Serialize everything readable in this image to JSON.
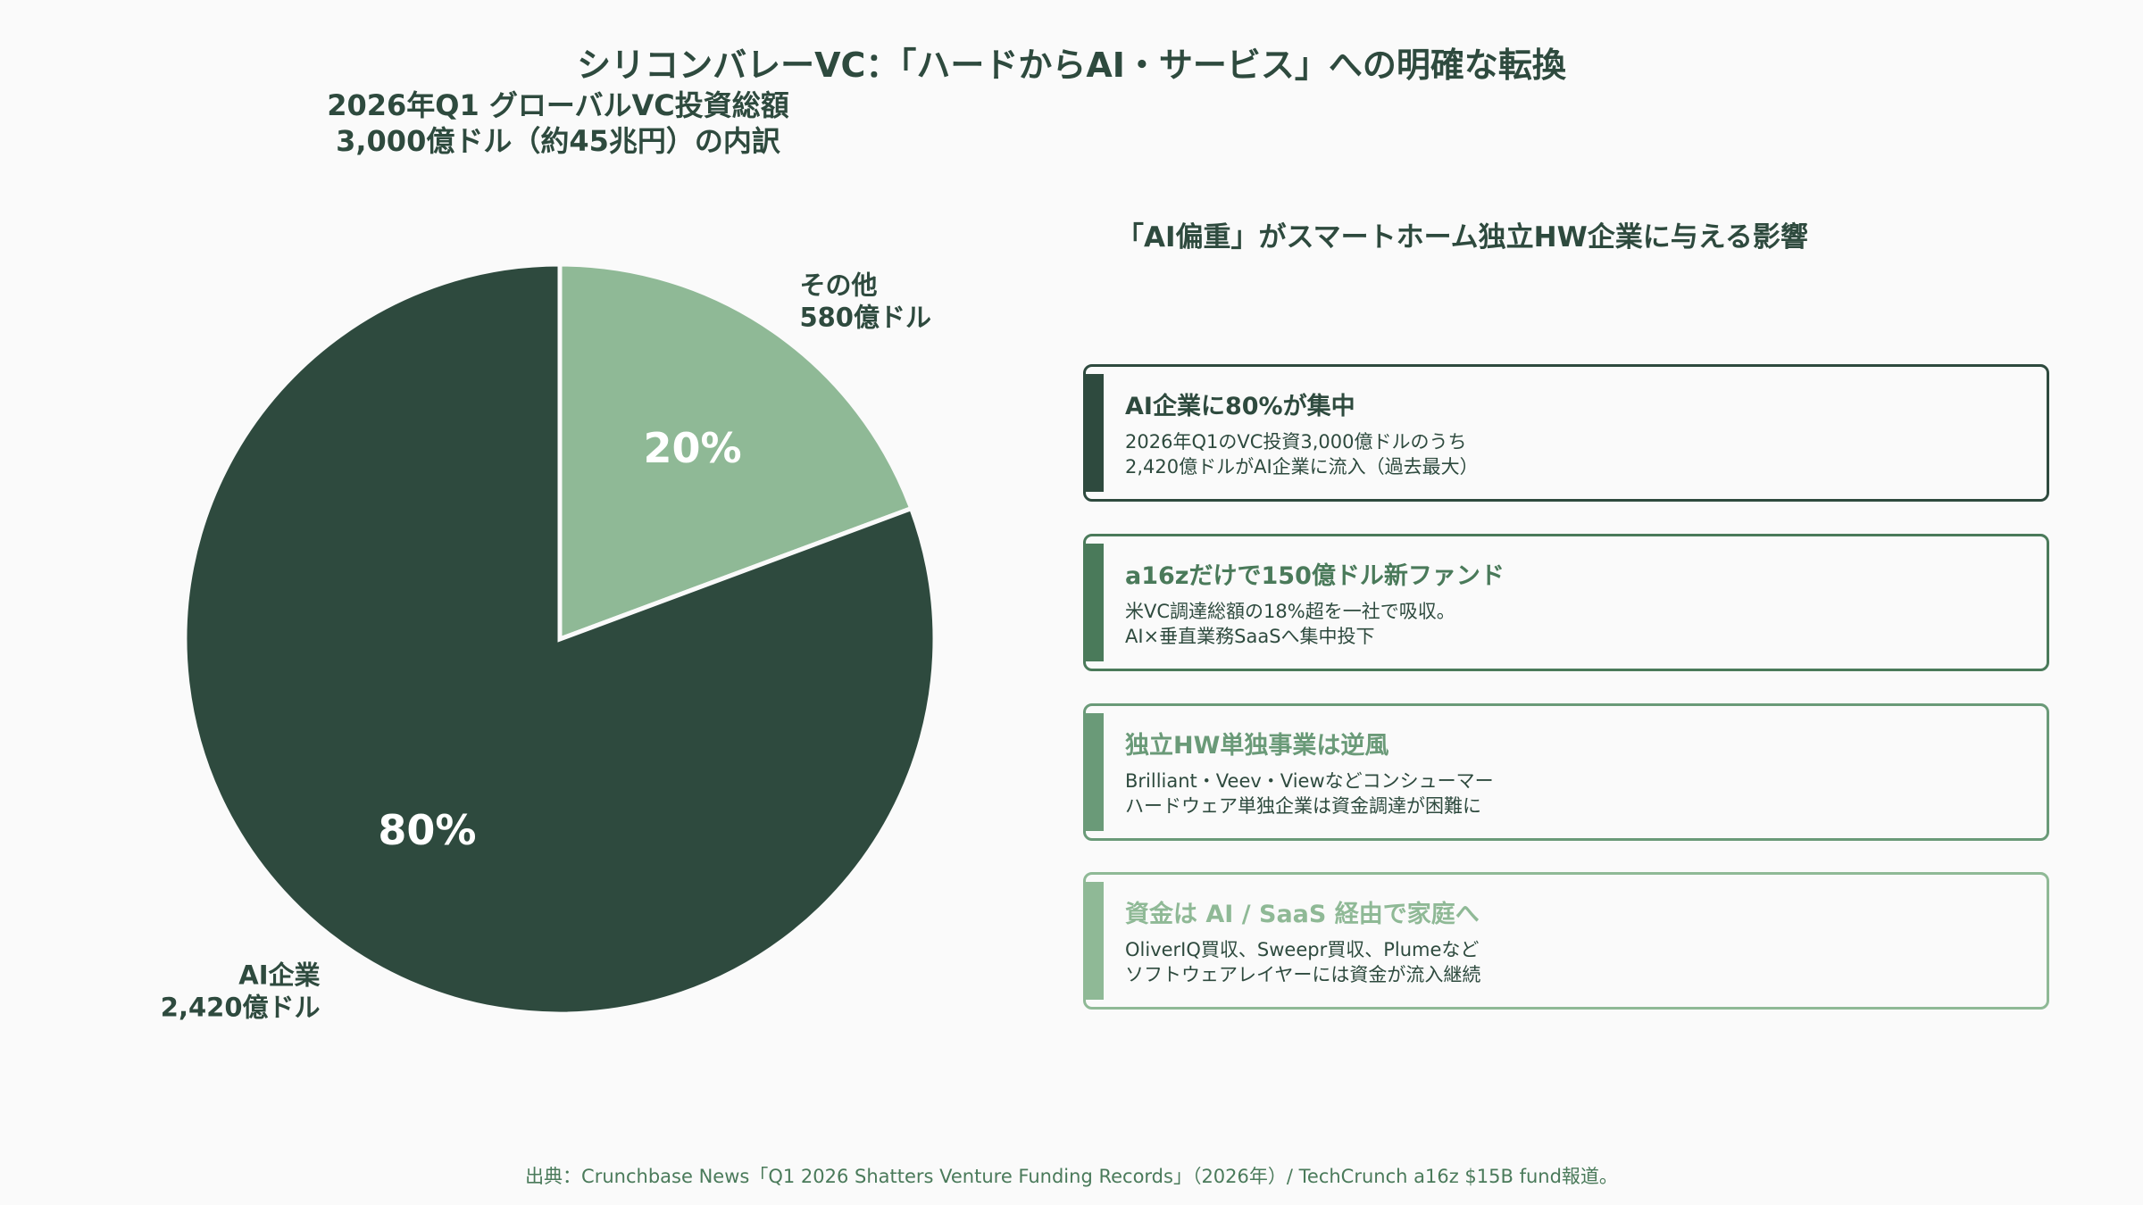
{
  "title": "シリコンバレーVC：「ハードからAI・サービス」への明確な転換",
  "pie_title": {
    "line1": "2026年Q1 グローバルVC投資総額",
    "line2": "3,000億ドル（約45兆円）の内訳"
  },
  "chart_data": {
    "type": "pie",
    "slices": [
      {
        "label": "その他",
        "value_label": "580億ドル",
        "value": 580,
        "percent_label": "20%",
        "color": "#8fb996"
      },
      {
        "label": "AI企業",
        "value_label": "2,420億ドル",
        "value": 2420,
        "percent_label": "80%",
        "color": "#2e4a3e"
      }
    ]
  },
  "right_title": "「AI偏重」がスマートホーム独立HW企業に与える影響",
  "cards": [
    {
      "heading": "AI企業に80%が集中",
      "lines": [
        "2026年Q1のVC投資3,000億ドルのうち",
        "2,420億ドルがAI企業に流入（過去最大）"
      ],
      "color": "#2e4a3e"
    },
    {
      "heading": "a16zだけで150億ドル新ファンド",
      "lines": [
        "米VC調達総額の18%超を一社で吸収。",
        "AI×垂直業務SaaSへ集中投下"
      ],
      "color": "#4a7a5a"
    },
    {
      "heading": "独立HW単独事業は逆風",
      "lines": [
        "Brilliant・Veev・Viewなどコンシューマー",
        "ハードウェア単独企業は資金調達が困難に"
      ],
      "color": "#6a9a78"
    },
    {
      "heading": "資金は AI / SaaS 経由で家庭へ",
      "lines": [
        "OliverIQ買収、Sweepr買収、Plumeなど",
        "ソフトウェアレイヤーには資金が流入継続"
      ],
      "color": "#8fb996"
    }
  ],
  "footer": "出典：Crunchbase News「Q1 2026 Shatters Venture Funding Records」（2026年）/ TechCrunch a16z $15B fund報道。"
}
